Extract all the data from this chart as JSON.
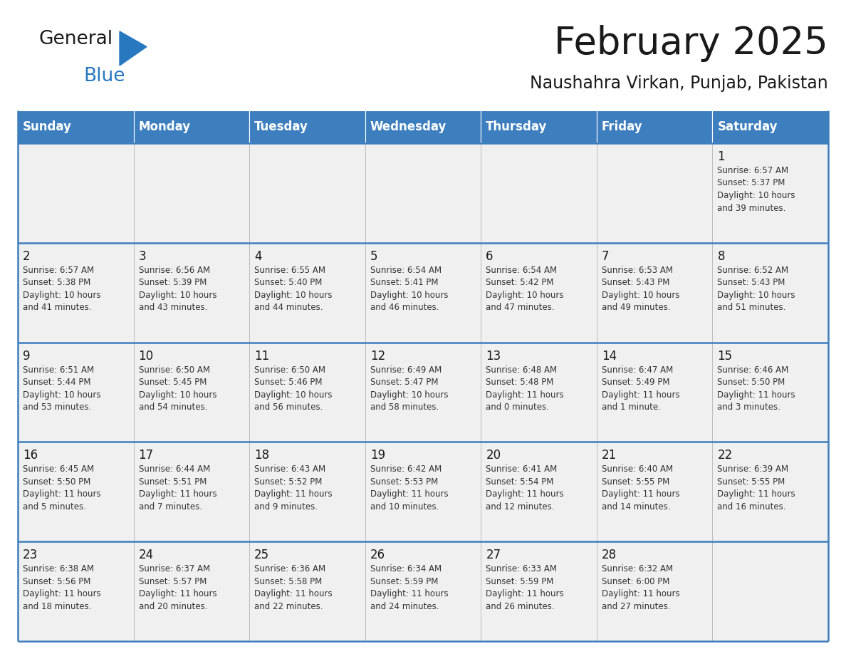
{
  "title": "February 2025",
  "subtitle": "Naushahra Virkan, Punjab, Pakistan",
  "header_bg": "#3d7ebf",
  "header_text": "#ffffff",
  "cell_bg": "#f0f0f0",
  "cell_bg_empty": "#f0f0f0",
  "border_color": "#3d7ebf",
  "row_line_color": "#3d7ebf",
  "day_headers": [
    "Sunday",
    "Monday",
    "Tuesday",
    "Wednesday",
    "Thursday",
    "Friday",
    "Saturday"
  ],
  "calendar_data": [
    [
      {
        "day": "",
        "info": ""
      },
      {
        "day": "",
        "info": ""
      },
      {
        "day": "",
        "info": ""
      },
      {
        "day": "",
        "info": ""
      },
      {
        "day": "",
        "info": ""
      },
      {
        "day": "",
        "info": ""
      },
      {
        "day": "1",
        "info": "Sunrise: 6:57 AM\nSunset: 5:37 PM\nDaylight: 10 hours\nand 39 minutes."
      }
    ],
    [
      {
        "day": "2",
        "info": "Sunrise: 6:57 AM\nSunset: 5:38 PM\nDaylight: 10 hours\nand 41 minutes."
      },
      {
        "day": "3",
        "info": "Sunrise: 6:56 AM\nSunset: 5:39 PM\nDaylight: 10 hours\nand 43 minutes."
      },
      {
        "day": "4",
        "info": "Sunrise: 6:55 AM\nSunset: 5:40 PM\nDaylight: 10 hours\nand 44 minutes."
      },
      {
        "day": "5",
        "info": "Sunrise: 6:54 AM\nSunset: 5:41 PM\nDaylight: 10 hours\nand 46 minutes."
      },
      {
        "day": "6",
        "info": "Sunrise: 6:54 AM\nSunset: 5:42 PM\nDaylight: 10 hours\nand 47 minutes."
      },
      {
        "day": "7",
        "info": "Sunrise: 6:53 AM\nSunset: 5:43 PM\nDaylight: 10 hours\nand 49 minutes."
      },
      {
        "day": "8",
        "info": "Sunrise: 6:52 AM\nSunset: 5:43 PM\nDaylight: 10 hours\nand 51 minutes."
      }
    ],
    [
      {
        "day": "9",
        "info": "Sunrise: 6:51 AM\nSunset: 5:44 PM\nDaylight: 10 hours\nand 53 minutes."
      },
      {
        "day": "10",
        "info": "Sunrise: 6:50 AM\nSunset: 5:45 PM\nDaylight: 10 hours\nand 54 minutes."
      },
      {
        "day": "11",
        "info": "Sunrise: 6:50 AM\nSunset: 5:46 PM\nDaylight: 10 hours\nand 56 minutes."
      },
      {
        "day": "12",
        "info": "Sunrise: 6:49 AM\nSunset: 5:47 PM\nDaylight: 10 hours\nand 58 minutes."
      },
      {
        "day": "13",
        "info": "Sunrise: 6:48 AM\nSunset: 5:48 PM\nDaylight: 11 hours\nand 0 minutes."
      },
      {
        "day": "14",
        "info": "Sunrise: 6:47 AM\nSunset: 5:49 PM\nDaylight: 11 hours\nand 1 minute."
      },
      {
        "day": "15",
        "info": "Sunrise: 6:46 AM\nSunset: 5:50 PM\nDaylight: 11 hours\nand 3 minutes."
      }
    ],
    [
      {
        "day": "16",
        "info": "Sunrise: 6:45 AM\nSunset: 5:50 PM\nDaylight: 11 hours\nand 5 minutes."
      },
      {
        "day": "17",
        "info": "Sunrise: 6:44 AM\nSunset: 5:51 PM\nDaylight: 11 hours\nand 7 minutes."
      },
      {
        "day": "18",
        "info": "Sunrise: 6:43 AM\nSunset: 5:52 PM\nDaylight: 11 hours\nand 9 minutes."
      },
      {
        "day": "19",
        "info": "Sunrise: 6:42 AM\nSunset: 5:53 PM\nDaylight: 11 hours\nand 10 minutes."
      },
      {
        "day": "20",
        "info": "Sunrise: 6:41 AM\nSunset: 5:54 PM\nDaylight: 11 hours\nand 12 minutes."
      },
      {
        "day": "21",
        "info": "Sunrise: 6:40 AM\nSunset: 5:55 PM\nDaylight: 11 hours\nand 14 minutes."
      },
      {
        "day": "22",
        "info": "Sunrise: 6:39 AM\nSunset: 5:55 PM\nDaylight: 11 hours\nand 16 minutes."
      }
    ],
    [
      {
        "day": "23",
        "info": "Sunrise: 6:38 AM\nSunset: 5:56 PM\nDaylight: 11 hours\nand 18 minutes."
      },
      {
        "day": "24",
        "info": "Sunrise: 6:37 AM\nSunset: 5:57 PM\nDaylight: 11 hours\nand 20 minutes."
      },
      {
        "day": "25",
        "info": "Sunrise: 6:36 AM\nSunset: 5:58 PM\nDaylight: 11 hours\nand 22 minutes."
      },
      {
        "day": "26",
        "info": "Sunrise: 6:34 AM\nSunset: 5:59 PM\nDaylight: 11 hours\nand 24 minutes."
      },
      {
        "day": "27",
        "info": "Sunrise: 6:33 AM\nSunset: 5:59 PM\nDaylight: 11 hours\nand 26 minutes."
      },
      {
        "day": "28",
        "info": "Sunrise: 6:32 AM\nSunset: 6:00 PM\nDaylight: 11 hours\nand 27 minutes."
      },
      {
        "day": "",
        "info": ""
      }
    ]
  ],
  "logo_general_color": "#1a1a1a",
  "logo_blue_color": "#2878c0",
  "logo_triangle_color": "#2878c0",
  "title_fontsize": 38,
  "subtitle_fontsize": 17,
  "header_fontsize": 12,
  "day_num_fontsize": 12,
  "info_fontsize": 8.5
}
